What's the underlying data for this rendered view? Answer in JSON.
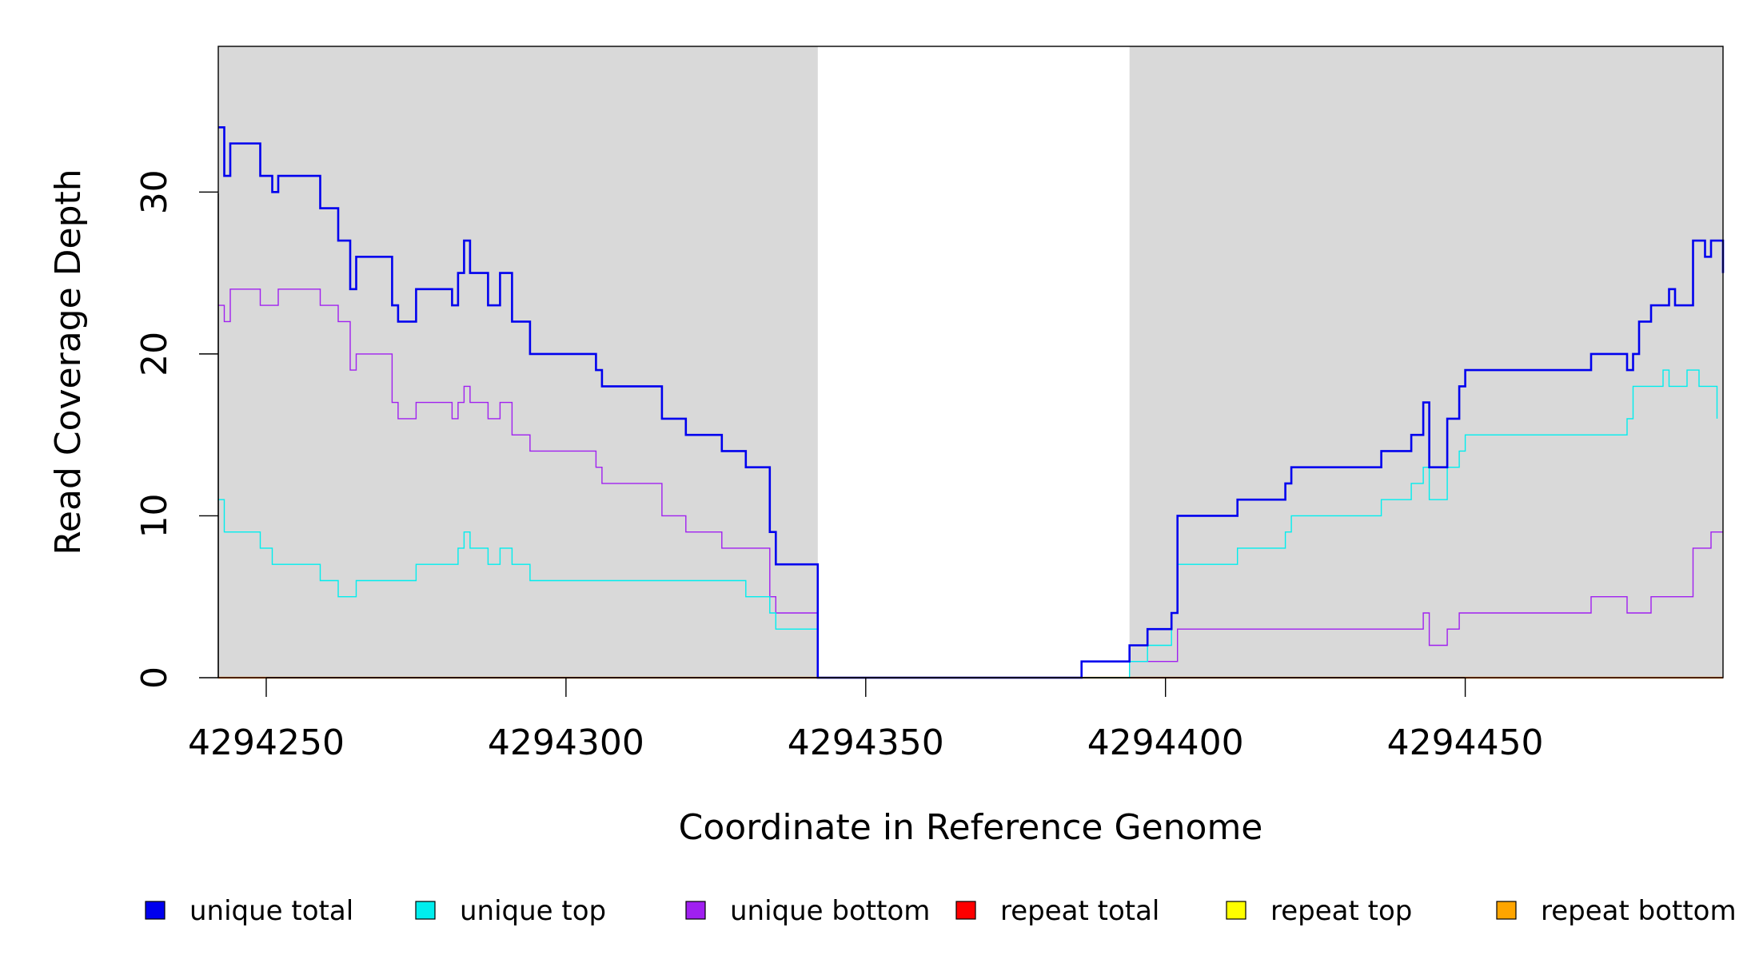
{
  "chart_data": {
    "type": "line",
    "step": true,
    "title": "",
    "xlabel": "Coordinate in Reference Genome",
    "ylabel": "Read Coverage Depth",
    "xlim": [
      4294242,
      4294493
    ],
    "ylim": [
      0,
      39
    ],
    "x_ticks": [
      4294250,
      4294300,
      4294350,
      4294400,
      4294450
    ],
    "x_tick_labels": [
      "4294250",
      "4294300",
      "4294350",
      "4294400",
      "4294450"
    ],
    "y_ticks": [
      0,
      10,
      20,
      30
    ],
    "y_tick_labels": [
      "0",
      "10",
      "20",
      "30"
    ],
    "shaded_regions": [
      {
        "x0": 4294242,
        "x1": 4294342,
        "color": "#d9d9d9"
      },
      {
        "x0": 4294394,
        "x1": 4294493,
        "color": "#d9d9d9"
      }
    ],
    "legend_position": "bottom",
    "legend": [
      {
        "label": "unique total",
        "color": "#0000ee"
      },
      {
        "label": "unique top",
        "color": "#00eeee"
      },
      {
        "label": "unique bottom",
        "color": "#a020f0"
      },
      {
        "label": "repeat total",
        "color": "#ff0000"
      },
      {
        "label": "repeat top",
        "color": "#ffff00"
      },
      {
        "label": "repeat bottom",
        "color": "#ffa500"
      }
    ],
    "series": [
      {
        "name": "unique total",
        "color": "#0000ee",
        "width": 2.6,
        "points": [
          [
            4294242,
            34
          ],
          [
            4294243,
            31
          ],
          [
            4294244,
            33
          ],
          [
            4294249,
            31
          ],
          [
            4294251,
            30
          ],
          [
            4294252,
            31
          ],
          [
            4294259,
            29
          ],
          [
            4294262,
            27
          ],
          [
            4294264,
            24
          ],
          [
            4294265,
            26
          ],
          [
            4294271,
            23
          ],
          [
            4294272,
            22
          ],
          [
            4294275,
            24
          ],
          [
            4294281,
            23
          ],
          [
            4294282,
            25
          ],
          [
            4294283,
            27
          ],
          [
            4294284,
            25
          ],
          [
            4294287,
            23
          ],
          [
            4294289,
            25
          ],
          [
            4294291,
            22
          ],
          [
            4294294,
            20
          ],
          [
            4294305,
            19
          ],
          [
            4294306,
            18
          ],
          [
            4294316,
            16
          ],
          [
            4294320,
            15
          ],
          [
            4294326,
            14
          ],
          [
            4294330,
            13
          ],
          [
            4294334,
            9
          ],
          [
            4294335,
            7
          ],
          [
            4294342,
            0
          ],
          [
            4294386,
            1
          ],
          [
            4294394,
            2
          ],
          [
            4294397,
            3
          ],
          [
            4294401,
            4
          ],
          [
            4294402,
            10
          ],
          [
            4294412,
            11
          ],
          [
            4294420,
            12
          ],
          [
            4294421,
            13
          ],
          [
            4294436,
            14
          ],
          [
            4294441,
            15
          ],
          [
            4294443,
            17
          ],
          [
            4294444,
            13
          ],
          [
            4294447,
            16
          ],
          [
            4294449,
            18
          ],
          [
            4294450,
            19
          ],
          [
            4294471,
            20
          ],
          [
            4294477,
            19
          ],
          [
            4294478,
            20
          ],
          [
            4294479,
            22
          ],
          [
            4294481,
            23
          ],
          [
            4294484,
            24
          ],
          [
            4294485,
            23
          ],
          [
            4294488,
            27
          ],
          [
            4294490,
            26
          ],
          [
            4294491,
            27
          ],
          [
            4294493,
            25
          ]
        ]
      },
      {
        "name": "unique top",
        "color": "#00eeee",
        "width": 1.4,
        "points": [
          [
            4294242,
            11
          ],
          [
            4294243,
            9
          ],
          [
            4294249,
            8
          ],
          [
            4294251,
            7
          ],
          [
            4294259,
            6
          ],
          [
            4294262,
            5
          ],
          [
            4294265,
            6
          ],
          [
            4294275,
            7
          ],
          [
            4294282,
            8
          ],
          [
            4294283,
            9
          ],
          [
            4294284,
            8
          ],
          [
            4294287,
            7
          ],
          [
            4294289,
            8
          ],
          [
            4294291,
            7
          ],
          [
            4294294,
            6
          ],
          [
            4294330,
            5
          ],
          [
            4294334,
            4
          ],
          [
            4294335,
            3
          ],
          [
            4294342,
            0
          ],
          [
            4294394,
            1
          ],
          [
            4294397,
            2
          ],
          [
            4294401,
            4
          ],
          [
            4294402,
            7
          ],
          [
            4294412,
            8
          ],
          [
            4294420,
            9
          ],
          [
            4294421,
            10
          ],
          [
            4294436,
            11
          ],
          [
            4294441,
            12
          ],
          [
            4294443,
            13
          ],
          [
            4294444,
            11
          ],
          [
            4294447,
            13
          ],
          [
            4294449,
            14
          ],
          [
            4294450,
            15
          ],
          [
            4294477,
            16
          ],
          [
            4294478,
            18
          ],
          [
            4294483,
            19
          ],
          [
            4294484,
            18
          ],
          [
            4294487,
            19
          ],
          [
            4294489,
            18
          ],
          [
            4294492,
            16
          ]
        ]
      },
      {
        "name": "unique bottom",
        "color": "#a020f0",
        "width": 1.4,
        "points": [
          [
            4294242,
            23
          ],
          [
            4294243,
            22
          ],
          [
            4294244,
            24
          ],
          [
            4294249,
            23
          ],
          [
            4294252,
            24
          ],
          [
            4294259,
            23
          ],
          [
            4294262,
            22
          ],
          [
            4294264,
            19
          ],
          [
            4294265,
            20
          ],
          [
            4294271,
            17
          ],
          [
            4294272,
            16
          ],
          [
            4294275,
            17
          ],
          [
            4294281,
            16
          ],
          [
            4294282,
            17
          ],
          [
            4294283,
            18
          ],
          [
            4294284,
            17
          ],
          [
            4294287,
            16
          ],
          [
            4294289,
            17
          ],
          [
            4294291,
            15
          ],
          [
            4294294,
            14
          ],
          [
            4294305,
            13
          ],
          [
            4294306,
            12
          ],
          [
            4294316,
            10
          ],
          [
            4294320,
            9
          ],
          [
            4294326,
            8
          ],
          [
            4294334,
            5
          ],
          [
            4294335,
            4
          ],
          [
            4294342,
            0
          ],
          [
            4294386,
            1
          ],
          [
            4294402,
            3
          ],
          [
            4294443,
            4
          ],
          [
            4294444,
            2
          ],
          [
            4294447,
            3
          ],
          [
            4294449,
            4
          ],
          [
            4294471,
            5
          ],
          [
            4294477,
            4
          ],
          [
            4294481,
            5
          ],
          [
            4294488,
            8
          ],
          [
            4294491,
            9
          ],
          [
            4294493,
            9
          ]
        ]
      },
      {
        "name": "repeat total",
        "color": "#ff0000",
        "width": 1.4,
        "points": [
          [
            4294242,
            0
          ],
          [
            4294493,
            0
          ]
        ]
      },
      {
        "name": "repeat top",
        "color": "#ffff00",
        "width": 1.4,
        "points": [
          [
            4294242,
            0
          ],
          [
            4294493,
            0
          ]
        ]
      },
      {
        "name": "repeat bottom",
        "color": "#ffa500",
        "width": 2.2,
        "points": [
          [
            4294242,
            0
          ],
          [
            4294493,
            0
          ]
        ]
      }
    ]
  }
}
